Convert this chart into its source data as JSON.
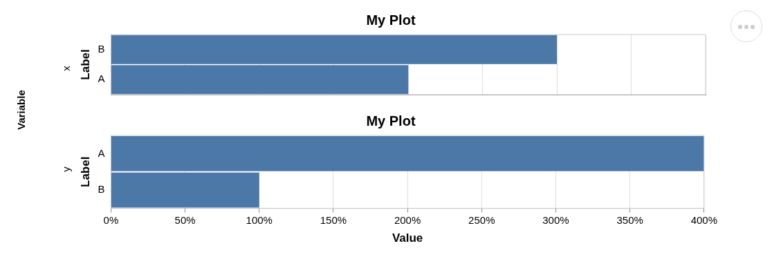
{
  "chart_data": [
    {
      "type": "bar",
      "title": "My Plot",
      "ylabel": "Label",
      "orientation": "horizontal",
      "categories": [
        "B",
        "A"
      ],
      "values": [
        300,
        200
      ],
      "color": "#4c78a8",
      "xlim": [
        0,
        400
      ],
      "xticks": [
        0,
        50,
        100,
        150,
        200,
        250,
        300,
        350,
        400
      ],
      "grid": "x",
      "legend": false,
      "tick_labels": "y",
      "annotations": [
        "Variable",
        "x"
      ]
    },
    {
      "type": "bar",
      "title": "My Plot",
      "ylabel": "Label",
      "xlabel": "Value",
      "orientation": "horizontal",
      "categories": [
        "A",
        "B"
      ],
      "values": [
        400,
        100
      ],
      "color": "#4c78a8",
      "xlim": [
        0,
        400
      ],
      "xticks": [
        {
          "value": 0,
          "label": "0%"
        },
        {
          "value": 50,
          "label": "50%"
        },
        {
          "value": 100,
          "label": "100%"
        },
        {
          "value": 150,
          "label": "150%"
        },
        {
          "value": 200,
          "label": "200%"
        },
        {
          "value": 250,
          "label": "250%"
        },
        {
          "value": 300,
          "label": "300%"
        },
        {
          "value": 350,
          "label": "350%"
        },
        {
          "value": 400,
          "label": "400%"
        }
      ],
      "grid": "x",
      "legend": false,
      "annotations": [
        "y"
      ]
    }
  ]
}
